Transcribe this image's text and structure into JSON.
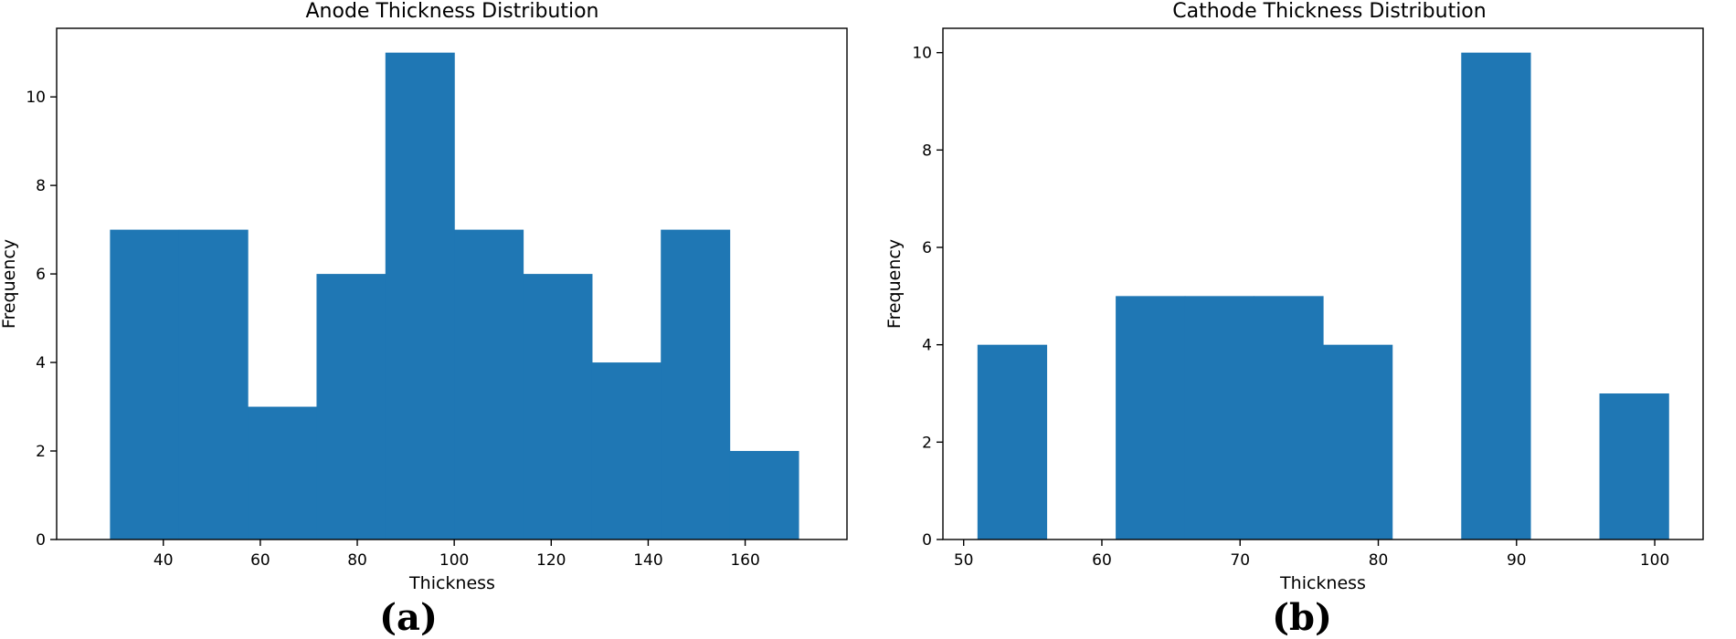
{
  "chart_data": [
    {
      "type": "bar",
      "title": "Anode Thickness Distribution",
      "xlabel": "Thickness",
      "ylabel": "Frequency",
      "panel_label": "(a)",
      "bin_edges": [
        29,
        43.2,
        57.4,
        71.6,
        85.8,
        100,
        114.2,
        128.4,
        142.6,
        156.8,
        171
      ],
      "values": [
        7,
        7,
        3,
        6,
        11,
        7,
        6,
        4,
        7,
        2
      ],
      "xlim": [
        18,
        181
      ],
      "ylim": [
        0,
        11.55
      ],
      "xticks": [
        40,
        60,
        80,
        100,
        120,
        140,
        160
      ],
      "yticks": [
        0,
        2,
        4,
        6,
        8,
        10
      ],
      "grid": false,
      "color": "#1f77b4"
    },
    {
      "type": "bar",
      "title": "Cathode Thickness Distribution",
      "xlabel": "Thickness",
      "ylabel": "Frequency",
      "panel_label": "(b)",
      "bin_edges": [
        51,
        56,
        61,
        66,
        71,
        76,
        81,
        86,
        91,
        96,
        101
      ],
      "values": [
        4,
        0,
        5,
        5,
        5,
        4,
        0,
        10,
        0,
        3
      ],
      "xlim": [
        48.5,
        103.5
      ],
      "ylim": [
        0,
        10.5
      ],
      "xticks": [
        50,
        60,
        70,
        80,
        90,
        100
      ],
      "yticks": [
        0,
        2,
        4,
        6,
        8,
        10
      ],
      "grid": false,
      "color": "#1f77b4"
    }
  ]
}
